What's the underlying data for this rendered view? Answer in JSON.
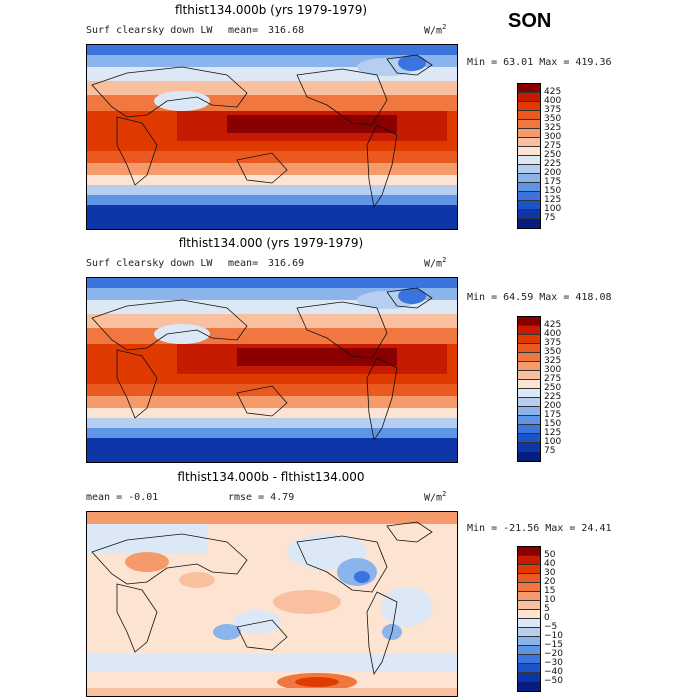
{
  "season": "SON",
  "colors": {
    "warm_scale": [
      "#8a0000",
      "#c61b00",
      "#e03a00",
      "#ea5a20",
      "#f07840",
      "#f59a6a",
      "#f9c0a0",
      "#fde4d2",
      "#dce8f6",
      "#b6cff0",
      "#8bb4ec",
      "#5f95e6",
      "#3a74dc",
      "#1c54c8",
      "#0e36a8",
      "#061d80"
    ],
    "diff_scale": [
      "#8a0000",
      "#c61b00",
      "#e03a00",
      "#ea5a20",
      "#f07840",
      "#f59a6a",
      "#f9c0a0",
      "#fde4d2",
      "#dce8f6",
      "#b6cff0",
      "#8bb4ec",
      "#5f95e6",
      "#3a74dc",
      "#1c54c8",
      "#0e36a8",
      "#061d80"
    ]
  },
  "panels": [
    {
      "title": "flthist134.000b (yrs 1979-1979)",
      "field": "Surf clearsky down LW",
      "mean_label": "mean=",
      "mean": "316.68",
      "units_base": "W/m",
      "units_exp": "2",
      "minmax": "Min =  63.01 Max = 419.36",
      "colorbar_labels": [
        "425",
        "400",
        "375",
        "350",
        "325",
        "300",
        "275",
        "250",
        "225",
        "200",
        "175",
        "150",
        "125",
        "100",
        "75"
      ]
    },
    {
      "title": "flthist134.000 (yrs 1979-1979)",
      "field": "Surf clearsky down LW",
      "mean_label": "mean=",
      "mean": "316.69",
      "units_base": "W/m",
      "units_exp": "2",
      "minmax": "Min =  64.59 Max = 418.08",
      "colorbar_labels": [
        "425",
        "400",
        "375",
        "350",
        "325",
        "300",
        "275",
        "250",
        "225",
        "200",
        "175",
        "150",
        "125",
        "100",
        "75"
      ]
    },
    {
      "title": "flthist134.000b - flthist134.000",
      "mean_text": "mean =   -0.01",
      "rmse_text": "rmse =    4.79",
      "units_base": "W/m",
      "units_exp": "2",
      "minmax": "Min = -21.56 Max =  24.41",
      "colorbar_labels": [
        "50",
        "40",
        "30",
        "20",
        "15",
        "10",
        "5",
        "0",
        "−5",
        "−10",
        "−15",
        "−20",
        "−30",
        "−40",
        "−50"
      ]
    }
  ]
}
